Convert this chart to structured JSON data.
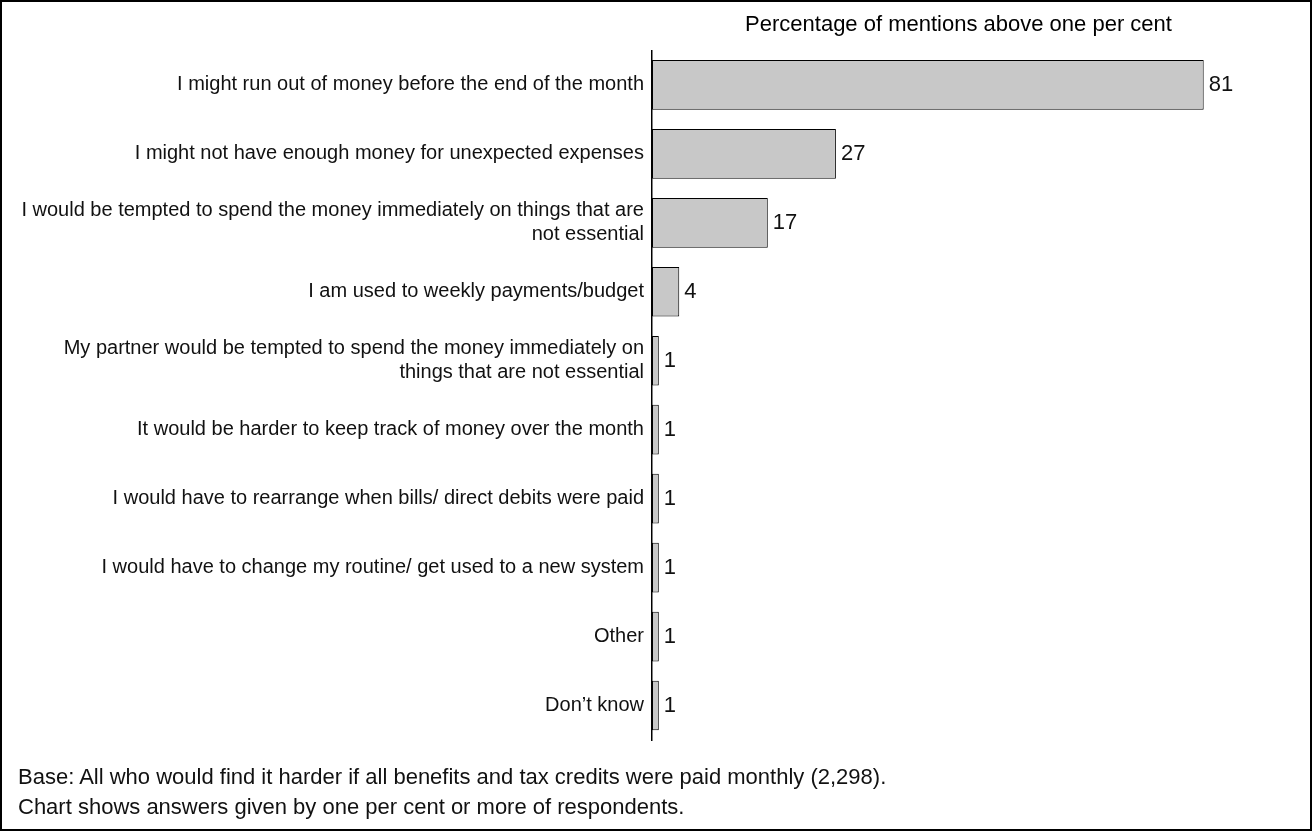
{
  "chart_data": {
    "type": "bar",
    "orientation": "horizontal",
    "title": "Percentage of mentions above one per cent",
    "categories": [
      "I might run out of money before the end of the month",
      "I might not have enough money for unexpected expenses",
      "I would be tempted to spend the money immediately on things that are not essential",
      "I am used to weekly payments/budget",
      "My partner would be tempted to spend the money immediately on things that are not essential",
      "It would be harder to keep track of money over the month",
      "I would have to rearrange when bills/ direct debits were paid",
      "I would have to change my routine/ get used to a new system",
      "Other",
      "Don’t know"
    ],
    "values": [
      81,
      27,
      17,
      4,
      1,
      1,
      1,
      1,
      1,
      1
    ],
    "color": "#c8c8c8",
    "data_labels": true,
    "grid": false,
    "legend": false,
    "tick_labels": "y",
    "annotations": [
      "Base: All who would find it harder if all benefits and tax credits were paid monthly (2,298).",
      "Chart shows answers given by one per cent or more of respondents."
    ]
  }
}
